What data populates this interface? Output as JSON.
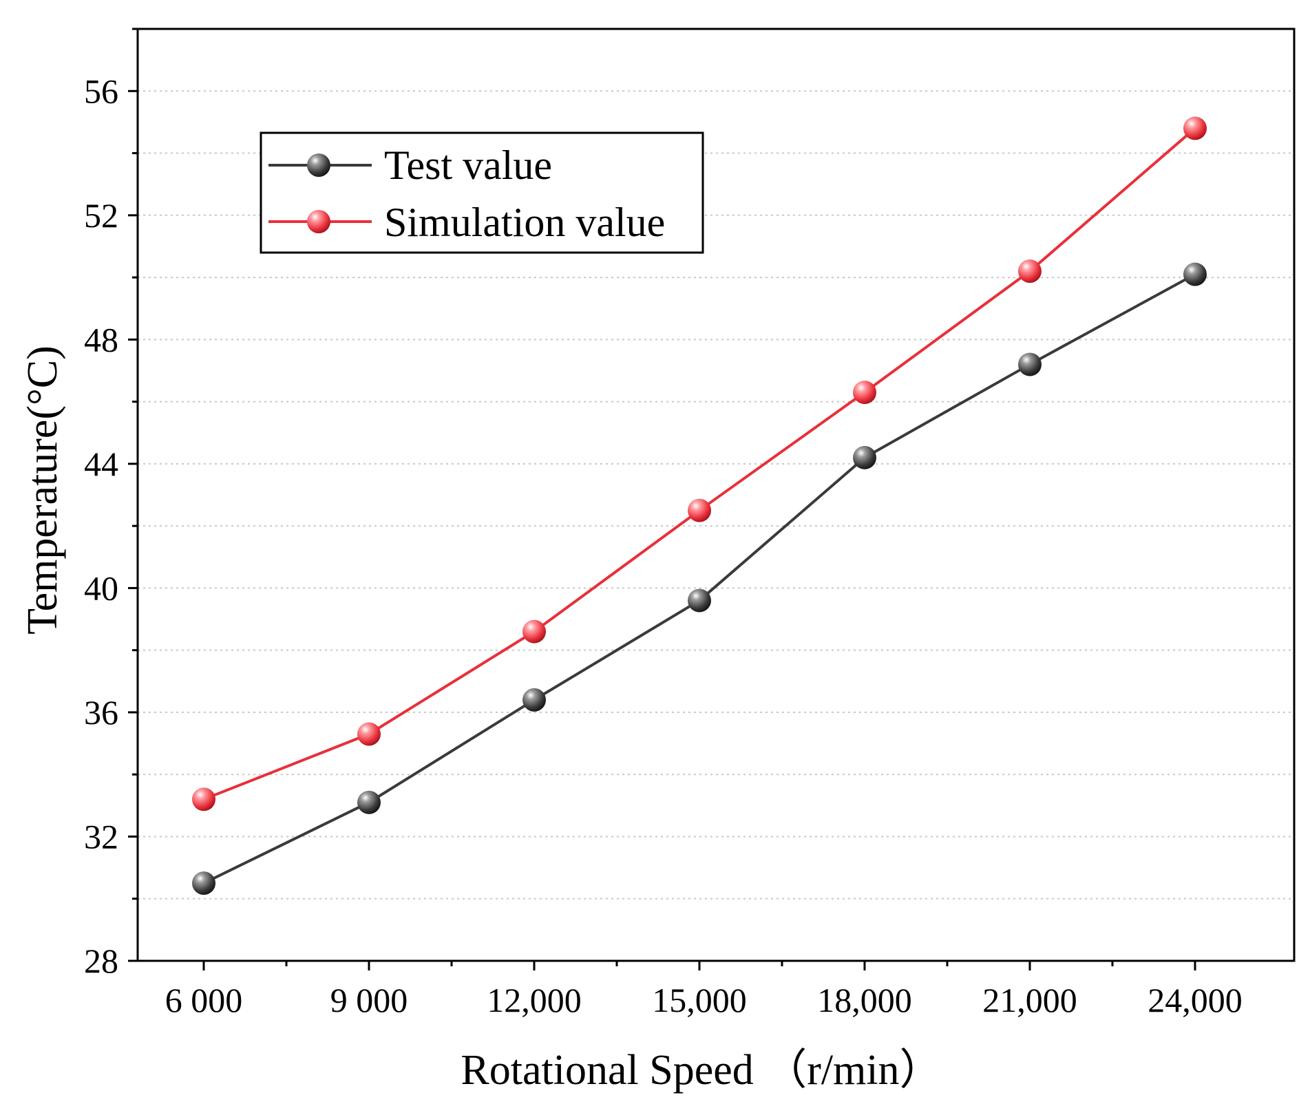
{
  "colors": {
    "test": "#3a3a3a",
    "simulation": "#e8303a",
    "grid": "#c8c8c8",
    "axis": "#000000"
  },
  "chart_data": {
    "type": "line",
    "xlabel": "Rotational Speed （r/min）",
    "ylabel": "Temperature(°C)",
    "x": [
      6000,
      9000,
      12000,
      15000,
      18000,
      21000,
      24000
    ],
    "x_tick_labels": [
      "6 000",
      "9 000",
      "12,000",
      "15,000",
      "18,000",
      "21,000",
      "24,000"
    ],
    "y_ticks": [
      28,
      32,
      36,
      40,
      44,
      48,
      52,
      56
    ],
    "y_tick_labels": [
      "28",
      "32",
      "36",
      "40",
      "44",
      "48",
      "52",
      "56"
    ],
    "ylim": [
      28,
      58
    ],
    "grid": "horizontal dotted",
    "legend_position": "top-left",
    "series": [
      {
        "name": "Test value",
        "color": "#3a3a3a",
        "marker": "sphere",
        "values": [
          30.5,
          33.1,
          36.4,
          39.6,
          44.2,
          47.2,
          50.1
        ]
      },
      {
        "name": "Simulation value",
        "color": "#e8303a",
        "marker": "sphere",
        "values": [
          33.2,
          35.3,
          38.6,
          42.5,
          46.3,
          50.2,
          54.8
        ]
      }
    ]
  }
}
